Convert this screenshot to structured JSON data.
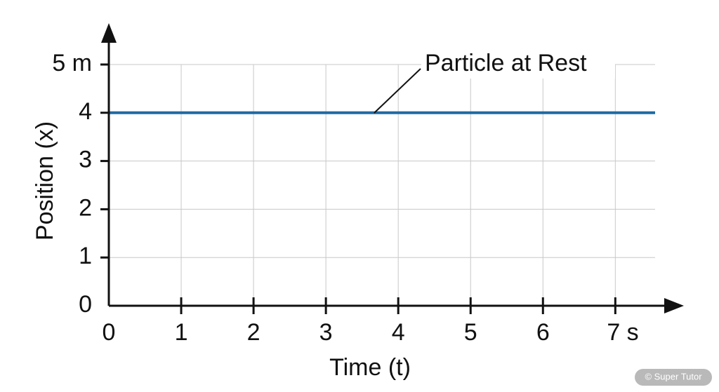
{
  "chart_data": {
    "type": "line",
    "x": [
      0,
      7.55
    ],
    "values": [
      4,
      4
    ],
    "color": "#1f6aa5",
    "xlabel": "Time (t)",
    "ylabel": "Position (x)",
    "xlim": [
      0,
      7.55
    ],
    "ylim": [
      0,
      5
    ],
    "xticks": [
      0,
      1,
      2,
      3,
      4,
      5,
      6,
      {
        "value": 7,
        "label": "7 s"
      }
    ],
    "yticks": [
      0,
      1,
      2,
      3,
      4,
      {
        "value": 5,
        "label": "5 m"
      }
    ],
    "grid": true,
    "annotation": "Particle at Rest",
    "watermark": "© Super Tutor"
  }
}
